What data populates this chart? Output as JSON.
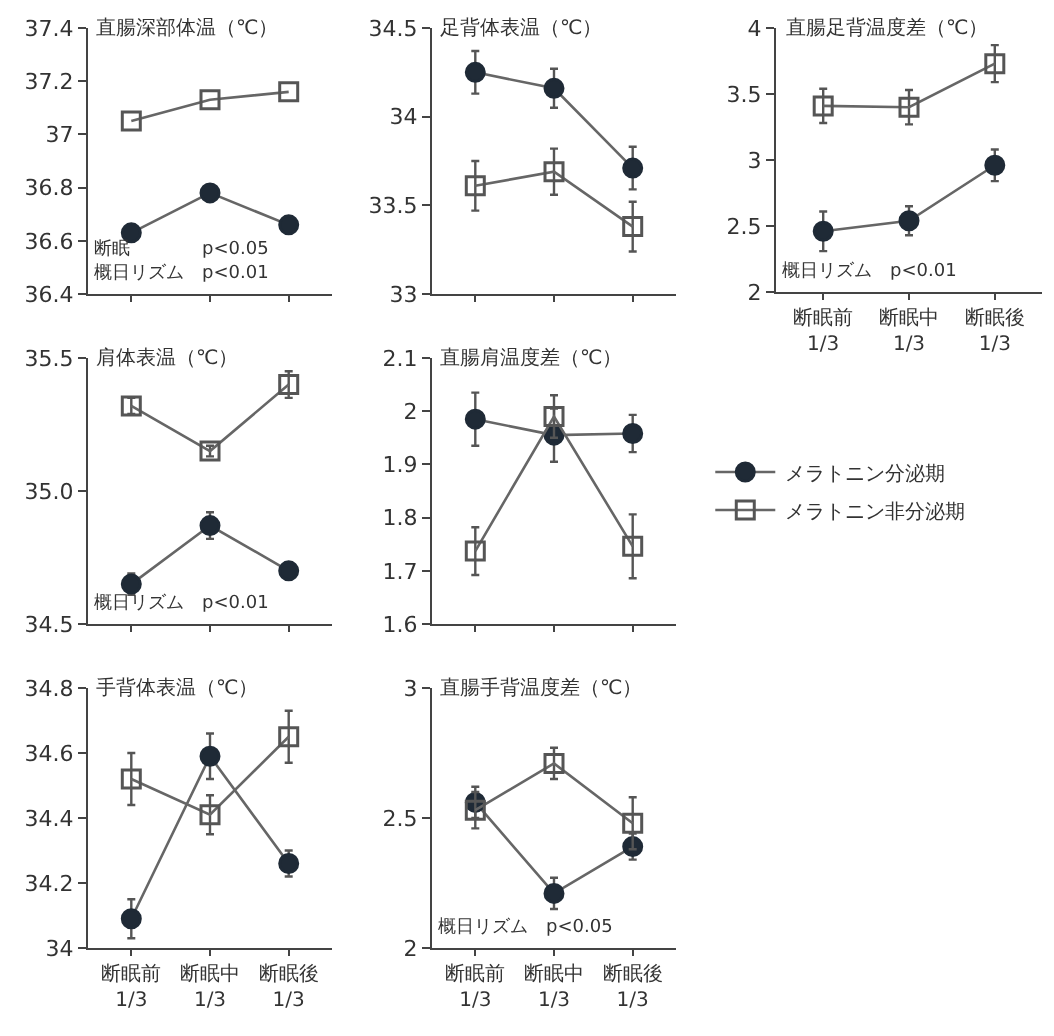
{
  "chart_data": [
    {
      "type": "line",
      "title": "直腸深部体温（℃）",
      "categories": [
        null,
        null,
        null
      ],
      "ylim": [
        36.4,
        37.4
      ],
      "yticks": [
        36.4,
        36.6,
        36.8,
        37.0,
        37.2,
        37.4
      ],
      "tick_labels": "y",
      "grid": false,
      "legend": false,
      "series": [
        {
          "color": "#1f2a36",
          "marker": "circle",
          "values": [
            36.63,
            36.78,
            36.66
          ]
        },
        {
          "color": "#555555",
          "marker": "square",
          "values": [
            37.05,
            37.13,
            37.16
          ]
        }
      ],
      "annotations": [
        "断眠　　　　p<0.05",
        "概日リズム　p<0.01"
      ]
    },
    {
      "type": "line",
      "title": "足背体表温（℃）",
      "categories": [
        null,
        null,
        null
      ],
      "ylim": [
        33.0,
        34.5
      ],
      "yticks": [
        33.0,
        33.5,
        34.0,
        34.5
      ],
      "tick_labels": "y",
      "grid": false,
      "legend": false,
      "series": [
        {
          "color": "#1f2a36",
          "marker": "circle",
          "values": [
            34.25,
            34.16,
            33.71
          ],
          "errors": [
            0.12,
            0.11,
            0.12
          ]
        },
        {
          "color": "#555555",
          "marker": "square",
          "values": [
            33.61,
            33.69,
            33.38
          ],
          "errors": [
            0.14,
            0.13,
            0.14
          ]
        }
      ]
    },
    {
      "type": "line",
      "title": "直腸足背温度差（℃）",
      "categories": [
        "断眠前\n1/3",
        "断眠中\n1/3",
        "断眠後\n1/3"
      ],
      "ylim": [
        2.0,
        4.0
      ],
      "yticks": [
        2.0,
        2.5,
        3.0,
        3.5,
        4.0
      ],
      "grid": false,
      "legend": false,
      "series": [
        {
          "color": "#1f2a36",
          "marker": "circle",
          "values": [
            2.46,
            2.54,
            2.96
          ],
          "errors": [
            0.15,
            0.11,
            0.12
          ]
        },
        {
          "color": "#555555",
          "marker": "square",
          "values": [
            3.41,
            3.4,
            3.73
          ],
          "errors": [
            0.13,
            0.13,
            0.14
          ]
        }
      ],
      "annotations": [
        "概日リズム　p<0.01"
      ]
    },
    {
      "type": "line",
      "title": "肩体表温（℃）",
      "categories": [
        null,
        null,
        null
      ],
      "ylim": [
        34.5,
        35.5
      ],
      "yticks": [
        34.5,
        {
          "value": 35.0,
          "label": "35.0"
        },
        35.5
      ],
      "tick_labels": "y",
      "grid": false,
      "legend": false,
      "series": [
        {
          "color": "#1f2a36",
          "marker": "circle",
          "values": [
            34.65,
            34.87,
            34.7
          ],
          "errors": [
            0.04,
            0.05,
            0.03
          ]
        },
        {
          "color": "#555555",
          "marker": "square",
          "values": [
            35.32,
            35.15,
            35.4
          ],
          "errors": [
            0.03,
            0.02,
            0.05
          ]
        }
      ],
      "annotations": [
        "概日リズム　p<0.01"
      ]
    },
    {
      "type": "line",
      "title": "直腸肩温度差（℃）",
      "categories": [
        null,
        null,
        null
      ],
      "ylim": [
        1.6,
        2.1
      ],
      "yticks": [
        1.6,
        1.7,
        1.8,
        1.9,
        2.0,
        2.1
      ],
      "tick_labels": "y",
      "grid": false,
      "legend": "right",
      "series": [
        {
          "name": "メラトニン分泌期",
          "color": "#1f2a36",
          "marker": "circle",
          "values": [
            1.985,
            1.955,
            1.958
          ],
          "errors": [
            0.05,
            0.05,
            0.035
          ]
        },
        {
          "name": "メラトニン非分泌期",
          "color": "#555555",
          "marker": "square",
          "values": [
            1.737,
            1.99,
            1.746
          ],
          "errors": [
            0.045,
            0.04,
            0.06
          ]
        }
      ]
    },
    {
      "type": "line",
      "title": "手背体表温（℃）",
      "categories": [
        "断眠前\n1/3",
        "断眠中\n1/3",
        "断眠後\n1/3"
      ],
      "ylim": [
        34.0,
        34.8
      ],
      "yticks": [
        34.0,
        34.2,
        34.4,
        34.6,
        34.8
      ],
      "grid": false,
      "legend": false,
      "series": [
        {
          "color": "#1f2a36",
          "marker": "circle",
          "values": [
            34.09,
            34.59,
            34.26
          ],
          "errors": [
            0.06,
            0.07,
            0.04
          ]
        },
        {
          "color": "#555555",
          "marker": "square",
          "values": [
            34.52,
            34.41,
            34.65
          ],
          "errors": [
            0.08,
            0.06,
            0.08
          ]
        }
      ]
    },
    {
      "type": "line",
      "title": "直腸手背温度差（℃）",
      "categories": [
        "断眠前\n1/3",
        "断眠中\n1/3",
        "断眠後\n1/3"
      ],
      "ylim": [
        2.0,
        3.0
      ],
      "yticks": [
        2.0,
        2.5,
        3.0
      ],
      "grid": false,
      "legend": false,
      "series": [
        {
          "color": "#1f2a36",
          "marker": "circle",
          "values": [
            2.56,
            2.21,
            2.39
          ],
          "errors": [
            0.06,
            0.06,
            0.05
          ]
        },
        {
          "color": "#555555",
          "marker": "square",
          "values": [
            2.53,
            2.71,
            2.48
          ],
          "errors": [
            0.07,
            0.06,
            0.1
          ]
        }
      ],
      "annotations": [
        "概日リズム　p<0.05"
      ]
    }
  ]
}
